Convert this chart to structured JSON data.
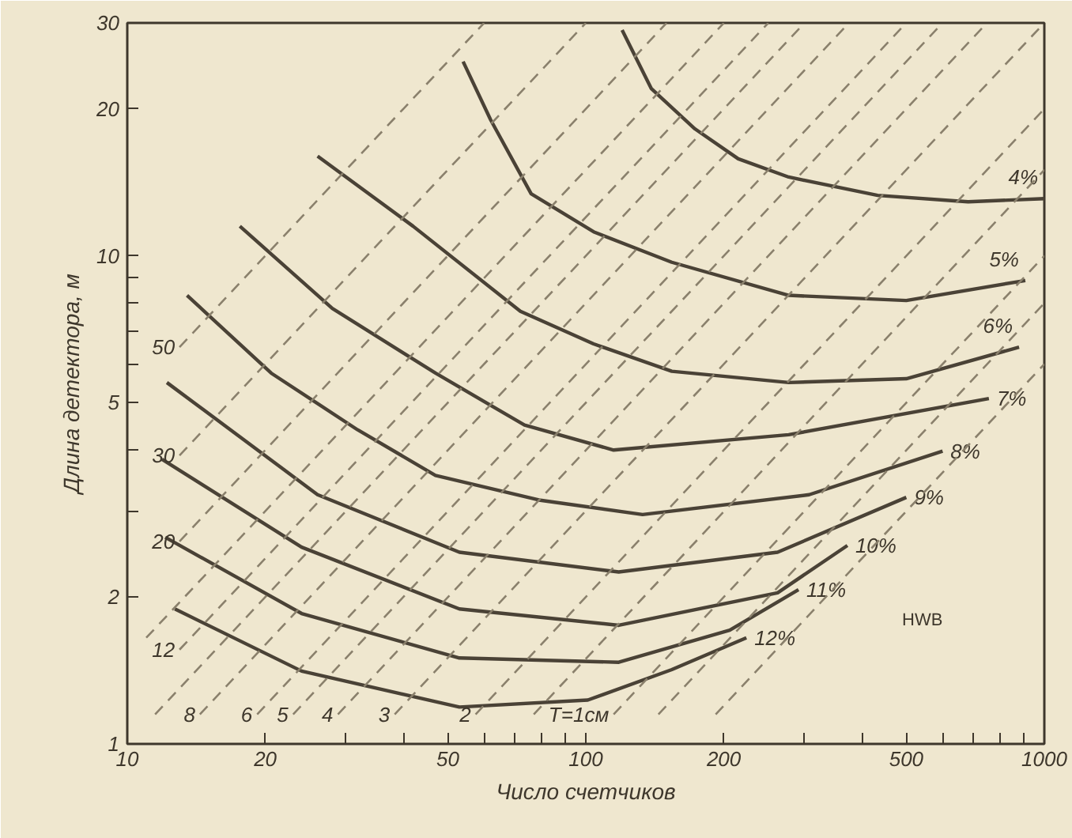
{
  "chart_data": {
    "type": "line",
    "xlabel": "Число счетчиков",
    "ylabel": "Длина детектора, м",
    "log": "xy",
    "grid": false,
    "line_style": "solid",
    "xlim": [
      10,
      1000
    ],
    "ylim": [
      1,
      30
    ],
    "xticks": [
      10,
      20,
      {
        "value": 30,
        "label": null
      },
      {
        "value": 40,
        "label": null
      },
      50,
      {
        "value": 60,
        "label": null
      },
      {
        "value": 70,
        "label": null
      },
      {
        "value": 80,
        "label": null
      },
      {
        "value": 90,
        "label": null
      },
      100,
      200,
      {
        "value": 300,
        "label": null
      },
      {
        "value": 400,
        "label": null
      },
      500,
      {
        "value": 600,
        "label": null
      },
      {
        "value": 700,
        "label": null
      },
      {
        "value": 800,
        "label": null
      },
      {
        "value": 900,
        "label": null
      },
      1000
    ],
    "yticks": [
      1,
      2,
      {
        "value": 3,
        "label": null
      },
      {
        "value": 4,
        "label": null
      },
      5,
      {
        "value": 6,
        "label": null
      },
      {
        "value": 7,
        "label": null
      },
      {
        "value": 8,
        "label": null
      },
      {
        "value": 9,
        "label": null
      },
      10,
      20,
      30
    ],
    "annotations": [
      "HWB"
    ],
    "series": [
      {
        "name": "4%",
        "color": "#4a4236",
        "x": [
          120,
          139,
          173,
          215,
          277,
          433,
          682,
          1000
        ],
        "values": [
          29,
          22,
          18.2,
          15.8,
          14.5,
          13.3,
          12.9,
          13.1
        ]
      },
      {
        "name": "5%",
        "color": "#4a4236",
        "x": [
          54,
          62,
          76,
          104,
          154,
          277,
          500,
          909
        ],
        "values": [
          25,
          19,
          13.4,
          11.2,
          9.7,
          8.3,
          8.1,
          8.9
        ]
      },
      {
        "name": "6%",
        "color": "#4a4236",
        "x": [
          26,
          42,
          72,
          104,
          154,
          277,
          500,
          881
        ],
        "values": [
          16,
          11.5,
          7.7,
          6.6,
          5.8,
          5.5,
          5.6,
          6.5
        ]
      },
      {
        "name": "7%",
        "color": "#4a4236",
        "x": [
          17.6,
          28,
          47,
          73.5,
          115,
          277,
          757
        ],
        "values": [
          11.5,
          7.8,
          5.75,
          4.5,
          4.0,
          4.3,
          5.1
        ]
      },
      {
        "name": "8%",
        "color": "#4a4236",
        "x": [
          13.5,
          20.6,
          31.8,
          47,
          79,
          133,
          307,
          600
        ],
        "values": [
          8.3,
          5.75,
          4.4,
          3.55,
          3.16,
          2.95,
          3.24,
          3.98
        ]
      },
      {
        "name": "9%",
        "color": "#4a4236",
        "x": [
          12.2,
          26,
          53,
          118,
          262,
          500
        ],
        "values": [
          5.5,
          3.24,
          2.47,
          2.25,
          2.47,
          3.2
        ]
      },
      {
        "name": "10%",
        "color": "#4a4236",
        "x": [
          11.9,
          24,
          53,
          118,
          262,
          372
        ],
        "values": [
          3.83,
          2.53,
          1.89,
          1.75,
          2.04,
          2.55
        ]
      },
      {
        "name": "11%",
        "color": "#4a4236",
        "x": [
          12.1,
          24,
          53,
          118,
          206,
          291
        ],
        "values": [
          2.65,
          1.85,
          1.5,
          1.47,
          1.71,
          2.07
        ]
      },
      {
        "name": "12%",
        "color": "#4a4236",
        "x": [
          12.7,
          24,
          53,
          101,
          154,
          224
        ],
        "values": [
          1.89,
          1.41,
          1.19,
          1.23,
          1.42,
          1.65
        ]
      },
      {
        "name": "50",
        "color": "#8a806c",
        "line_style": "dashed",
        "x": [
          13,
          60
        ],
        "values": [
          6.5,
          30
        ]
      },
      {
        "name": "30",
        "color": "#8a806c",
        "line_style": "dashed",
        "x": [
          13,
          100
        ],
        "values": [
          3.9,
          30
        ]
      },
      {
        "name": "20",
        "color": "#8a806c",
        "line_style": "dashed",
        "x": [
          13,
          150
        ],
        "values": [
          2.6,
          30
        ]
      },
      {
        "color": "#8a806c",
        "line_style": "dashed",
        "x": [
          11,
          200
        ],
        "values": [
          1.65,
          30
        ]
      },
      {
        "name": "12",
        "color": "#8a806c",
        "line_style": "dashed",
        "x": [
          13,
          250
        ],
        "values": [
          1.56,
          30
        ]
      },
      {
        "color": "#8a806c",
        "line_style": "dashed",
        "x": [
          11.5,
          300
        ],
        "values": [
          1.15,
          30
        ]
      },
      {
        "name": "8",
        "color": "#8a806c",
        "line_style": "dashed",
        "x": [
          14.4,
          375
        ],
        "values": [
          1.15,
          30
        ]
      },
      {
        "name": "6",
        "color": "#8a806c",
        "line_style": "dashed",
        "x": [
          19.2,
          500
        ],
        "values": [
          1.15,
          30
        ]
      },
      {
        "name": "5",
        "color": "#8a806c",
        "line_style": "dashed",
        "x": [
          23,
          600
        ],
        "values": [
          1.15,
          30
        ]
      },
      {
        "name": "4",
        "color": "#8a806c",
        "line_style": "dashed",
        "x": [
          28.8,
          750
        ],
        "values": [
          1.15,
          30
        ]
      },
      {
        "name": "3",
        "color": "#8a806c",
        "line_style": "dashed",
        "x": [
          38.3,
          1000
        ],
        "values": [
          1.15,
          30
        ]
      },
      {
        "name": "2",
        "color": "#8a806c",
        "line_style": "dashed",
        "x": [
          57.5,
          1000
        ],
        "values": [
          1.15,
          20
        ]
      },
      {
        "color": "#8a806c",
        "line_style": "dashed",
        "x": [
          77,
          1000
        ],
        "values": [
          1.15,
          15
        ]
      },
      {
        "name": "T=1см",
        "color": "#8a806c",
        "line_style": "dashed",
        "x": [
          115,
          1000
        ],
        "values": [
          1.15,
          10
        ]
      },
      {
        "color": "#8a806c",
        "line_style": "dashed",
        "x": [
          144,
          1000
        ],
        "values": [
          1.15,
          8
        ]
      },
      {
        "color": "#8a806c",
        "line_style": "dashed",
        "x": [
          192,
          1000
        ],
        "values": [
          1.15,
          6
        ]
      }
    ]
  }
}
